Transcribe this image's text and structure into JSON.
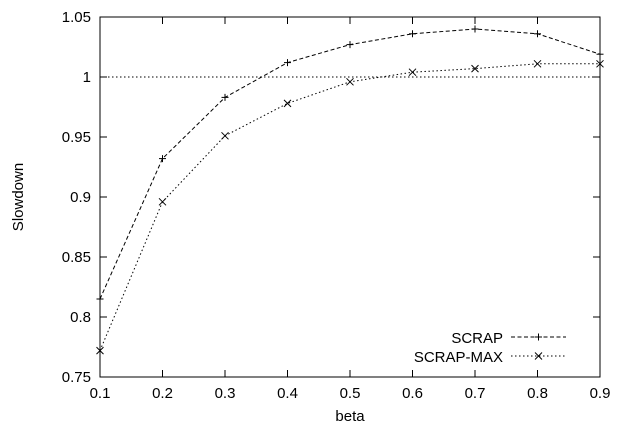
{
  "chart_data": {
    "type": "line",
    "xlabel": "beta",
    "ylabel": "Slowdown",
    "xlim": [
      0.1,
      0.9
    ],
    "ylim": [
      0.75,
      1.05
    ],
    "xticks": [
      "0.1",
      "0.2",
      "0.3",
      "0.4",
      "0.5",
      "0.6",
      "0.7",
      "0.8",
      "0.9"
    ],
    "yticks": [
      "0.75",
      "0.8",
      "0.85",
      "0.9",
      "0.95",
      "1",
      "1.05"
    ],
    "x": [
      0.1,
      0.2,
      0.3,
      0.4,
      0.5,
      0.6,
      0.7,
      0.8,
      0.9
    ],
    "series": [
      {
        "name": "SCRAP",
        "marker": "plus",
        "dash": "dashed",
        "values": [
          0.815,
          0.932,
          0.983,
          1.012,
          1.027,
          1.036,
          1.04,
          1.036,
          1.019
        ]
      },
      {
        "name": "SCRAP-MAX",
        "marker": "cross",
        "dash": "dotted",
        "values": [
          0.772,
          0.896,
          0.951,
          0.978,
          0.996,
          1.004,
          1.007,
          1.011,
          1.011
        ]
      }
    ],
    "reference_line": 1.0,
    "legend_position": "bottom-right",
    "grid": false
  }
}
